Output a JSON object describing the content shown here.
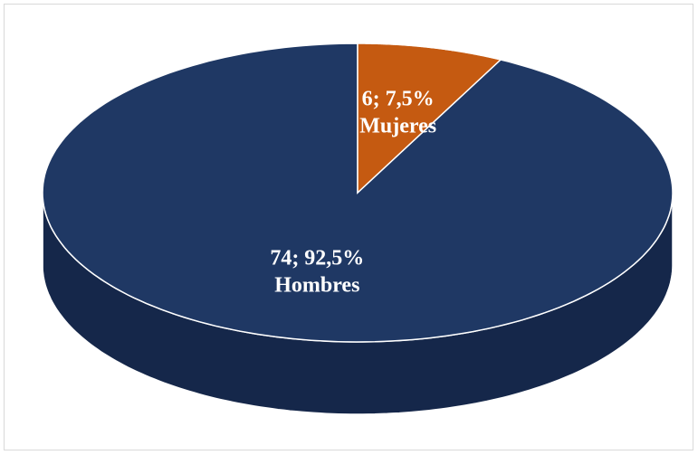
{
  "chart_data": {
    "type": "pie",
    "categories": [
      "Hombres",
      "Mujeres"
    ],
    "values": [
      74,
      6
    ],
    "value_labels": [
      "74; 92,5%",
      "6; 7,5%"
    ],
    "colors": [
      "#1f3864",
      "#c55a11"
    ],
    "side_colors": [
      "#15274a",
      "#5a2606"
    ]
  }
}
